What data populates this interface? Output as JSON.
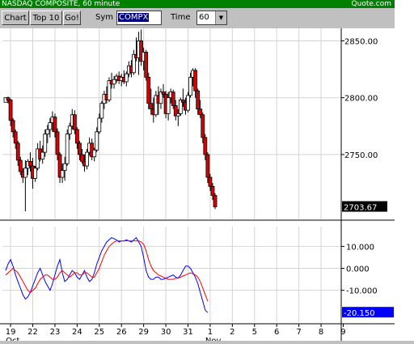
{
  "window": {
    "title": "NASDAQ COMPOSITE, 60 minute",
    "brand": "Quote.com"
  },
  "toolbar": {
    "chart_label": "Chart",
    "top10_label": "Top 10",
    "go_label": "Go!",
    "sym_label": "Sym",
    "sym_value": "COMPX",
    "time_label": "Time",
    "time_value": "60"
  },
  "colors": {
    "up_candle": "#ffffff",
    "down_candle": "#dd0000",
    "stoch_k": "#0000ff",
    "stoch_d": "#ff0000",
    "last_price_bg": "#000000",
    "indicator_bg": "#0000ff"
  },
  "chart_data": {
    "type": "candlestick",
    "title": "NASDAQ COMPOSITE, 60 minute",
    "last_price_label": "2703.67",
    "price_axis": {
      "ylim": [
        2693,
        2861
      ],
      "ticks": [
        "2850.00",
        "2800.00",
        "2750.00"
      ],
      "tick_values": [
        2850,
        2800,
        2750
      ]
    },
    "x_ticks": [
      {
        "label": "19",
        "index": 2
      },
      {
        "label": "22",
        "index": 11
      },
      {
        "label": "23",
        "index": 20
      },
      {
        "label": "24",
        "index": 29
      },
      {
        "label": "25",
        "index": 38
      },
      {
        "label": "26",
        "index": 47
      },
      {
        "label": "29",
        "index": 56
      },
      {
        "label": "30",
        "index": 65
      },
      {
        "label": "31",
        "index": 74
      },
      {
        "label": "1",
        "index": 83
      },
      {
        "label": "2",
        "index": 92
      },
      {
        "label": "5",
        "index": 101
      },
      {
        "label": "6",
        "index": 110
      },
      {
        "label": "7",
        "index": 119
      },
      {
        "label": "8",
        "index": 128
      },
      {
        "label": "9",
        "index": 137
      }
    ],
    "month_labels": [
      {
        "label": "Oct",
        "index": 2
      },
      {
        "label": "Nov",
        "index": 83
      }
    ],
    "candles": [
      [
        2796,
        2800,
        2796,
        2800
      ],
      [
        2800,
        2801,
        2795,
        2798
      ],
      [
        2798,
        2799,
        2775,
        2780
      ],
      [
        2780,
        2782,
        2765,
        2770
      ],
      [
        2770,
        2772,
        2755,
        2760
      ],
      [
        2760,
        2762,
        2740,
        2745
      ],
      [
        2745,
        2748,
        2732,
        2735
      ],
      [
        2735,
        2738,
        2725,
        2730
      ],
      [
        2730,
        2745,
        2700,
        2738
      ],
      [
        2738,
        2746,
        2732,
        2744
      ],
      [
        2744,
        2752,
        2735,
        2740
      ],
      [
        2740,
        2747,
        2720,
        2729
      ],
      [
        2729,
        2740,
        2726,
        2738
      ],
      [
        2738,
        2760,
        2736,
        2755
      ],
      [
        2755,
        2762,
        2744,
        2746
      ],
      [
        2746,
        2758,
        2742,
        2752
      ],
      [
        2752,
        2772,
        2748,
        2768
      ],
      [
        2768,
        2776,
        2760,
        2772
      ],
      [
        2772,
        2782,
        2765,
        2778
      ],
      [
        2778,
        2788,
        2770,
        2783
      ],
      [
        2783,
        2786,
        2765,
        2770
      ],
      [
        2770,
        2773,
        2745,
        2750
      ],
      [
        2750,
        2752,
        2725,
        2730
      ],
      [
        2730,
        2742,
        2725,
        2736
      ],
      [
        2736,
        2748,
        2727,
        2742
      ],
      [
        2742,
        2772,
        2740,
        2768
      ],
      [
        2768,
        2778,
        2763,
        2775
      ],
      [
        2775,
        2790,
        2772,
        2785
      ],
      [
        2785,
        2789,
        2768,
        2772
      ],
      [
        2772,
        2774,
        2755,
        2760
      ],
      [
        2760,
        2762,
        2745,
        2750
      ],
      [
        2750,
        2755,
        2742,
        2744
      ],
      [
        2744,
        2750,
        2735,
        2740
      ],
      [
        2740,
        2755,
        2737,
        2752
      ],
      [
        2752,
        2765,
        2749,
        2760
      ],
      [
        2760,
        2764,
        2745,
        2748
      ],
      [
        2748,
        2756,
        2744,
        2754
      ],
      [
        2754,
        2774,
        2752,
        2770
      ],
      [
        2770,
        2786,
        2768,
        2782
      ],
      [
        2782,
        2797,
        2778,
        2795
      ],
      [
        2795,
        2806,
        2790,
        2803
      ],
      [
        2803,
        2810,
        2795,
        2798
      ],
      [
        2798,
        2818,
        2796,
        2815
      ],
      [
        2815,
        2822,
        2808,
        2812
      ],
      [
        2812,
        2819,
        2808,
        2816
      ],
      [
        2816,
        2821,
        2813,
        2819
      ],
      [
        2819,
        2823,
        2812,
        2815
      ],
      [
        2815,
        2821,
        2810,
        2818
      ],
      [
        2818,
        2824,
        2812,
        2814
      ],
      [
        2814,
        2823,
        2810,
        2821
      ],
      [
        2821,
        2832,
        2818,
        2828
      ],
      [
        2828,
        2833,
        2818,
        2822
      ],
      [
        2822,
        2842,
        2820,
        2838
      ],
      [
        2838,
        2853,
        2832,
        2835
      ],
      [
        2835,
        2858,
        2820,
        2850
      ],
      [
        2850,
        2860,
        2828,
        2832
      ],
      [
        2832,
        2844,
        2824,
        2840
      ],
      [
        2840,
        2842,
        2815,
        2818
      ],
      [
        2818,
        2822,
        2790,
        2795
      ],
      [
        2795,
        2808,
        2785,
        2790
      ],
      [
        2790,
        2800,
        2778,
        2785
      ],
      [
        2785,
        2806,
        2783,
        2802
      ],
      [
        2802,
        2810,
        2785,
        2795
      ],
      [
        2795,
        2808,
        2790,
        2805
      ],
      [
        2805,
        2812,
        2800,
        2803
      ],
      [
        2803,
        2806,
        2782,
        2786
      ],
      [
        2786,
        2805,
        2780,
        2800
      ],
      [
        2800,
        2808,
        2795,
        2805
      ],
      [
        2805,
        2807,
        2790,
        2793
      ],
      [
        2793,
        2798,
        2780,
        2784
      ],
      [
        2784,
        2790,
        2775,
        2786
      ],
      [
        2786,
        2800,
        2784,
        2798
      ],
      [
        2798,
        2808,
        2792,
        2796
      ],
      [
        2796,
        2800,
        2785,
        2789
      ],
      [
        2789,
        2805,
        2787,
        2802
      ],
      [
        2802,
        2822,
        2800,
        2818
      ],
      [
        2818,
        2826,
        2810,
        2824
      ],
      [
        2824,
        2826,
        2800,
        2806
      ],
      [
        2806,
        2808,
        2785,
        2790
      ],
      [
        2790,
        2798,
        2782,
        2785
      ],
      [
        2785,
        2787,
        2760,
        2765
      ],
      [
        2765,
        2768,
        2745,
        2750
      ],
      [
        2750,
        2752,
        2725,
        2730
      ],
      [
        2730,
        2733,
        2718,
        2722
      ],
      [
        2722,
        2725,
        2710,
        2714
      ],
      [
        2714,
        2716,
        2702,
        2704
      ]
    ],
    "indicator": {
      "type": "line",
      "ylim": [
        -24.5,
        19
      ],
      "ticks": [
        "10.000",
        "0.000",
        "-10.000"
      ],
      "tick_values": [
        10,
        0,
        -10
      ],
      "last_label": "-20.150",
      "series": [
        {
          "values": [
            -1,
            2,
            4,
            1,
            -3,
            -6,
            -9,
            -12,
            -14,
            -13,
            -11,
            -8,
            -5,
            -2,
            0,
            -3,
            -6,
            -8,
            -10,
            -7,
            -3,
            1,
            4,
            -2,
            -6,
            -5,
            -3,
            -1,
            -2,
            -4,
            -5,
            -3,
            -1,
            -4,
            -6,
            -5,
            -2,
            2,
            5,
            8,
            10,
            12,
            13,
            14,
            13.5,
            13,
            12,
            12.5,
            12.5,
            13,
            12.5,
            12,
            13,
            14,
            12,
            10,
            5,
            -1,
            -4,
            -5,
            -5,
            -4,
            -4,
            -5,
            -5,
            -4.5,
            -4,
            -3.5,
            -3,
            -4,
            -4.5,
            -3,
            -1,
            1,
            1,
            0,
            -2,
            -4,
            -7,
            -11,
            -15,
            -19,
            -20.15
          ]
        },
        {
          "values": [
            -3,
            -2,
            -1,
            0,
            -1,
            -2,
            -4,
            -6,
            -8,
            -10,
            -11,
            -10,
            -9,
            -7,
            -5,
            -4,
            -3,
            -3,
            -4,
            -5,
            -5,
            -4,
            -2,
            -1,
            -2,
            -3,
            -4,
            -3,
            -2,
            -2,
            -3,
            -3,
            -2,
            -2,
            -3,
            -4,
            -4,
            -2,
            0,
            3,
            6,
            8,
            10,
            11,
            12,
            12.5,
            12.5,
            12.5,
            12.5,
            12.5,
            12.5,
            12.5,
            12.5,
            12.5,
            12.5,
            12,
            11,
            8,
            4,
            1,
            -1,
            -2,
            -3,
            -3.5,
            -4,
            -4.5,
            -5,
            -5,
            -5,
            -4.5,
            -4.5,
            -4,
            -3.5,
            -3,
            -2.5,
            -2,
            -2.5,
            -3,
            -4,
            -6,
            -9,
            -12,
            -15
          ]
        }
      ]
    }
  }
}
